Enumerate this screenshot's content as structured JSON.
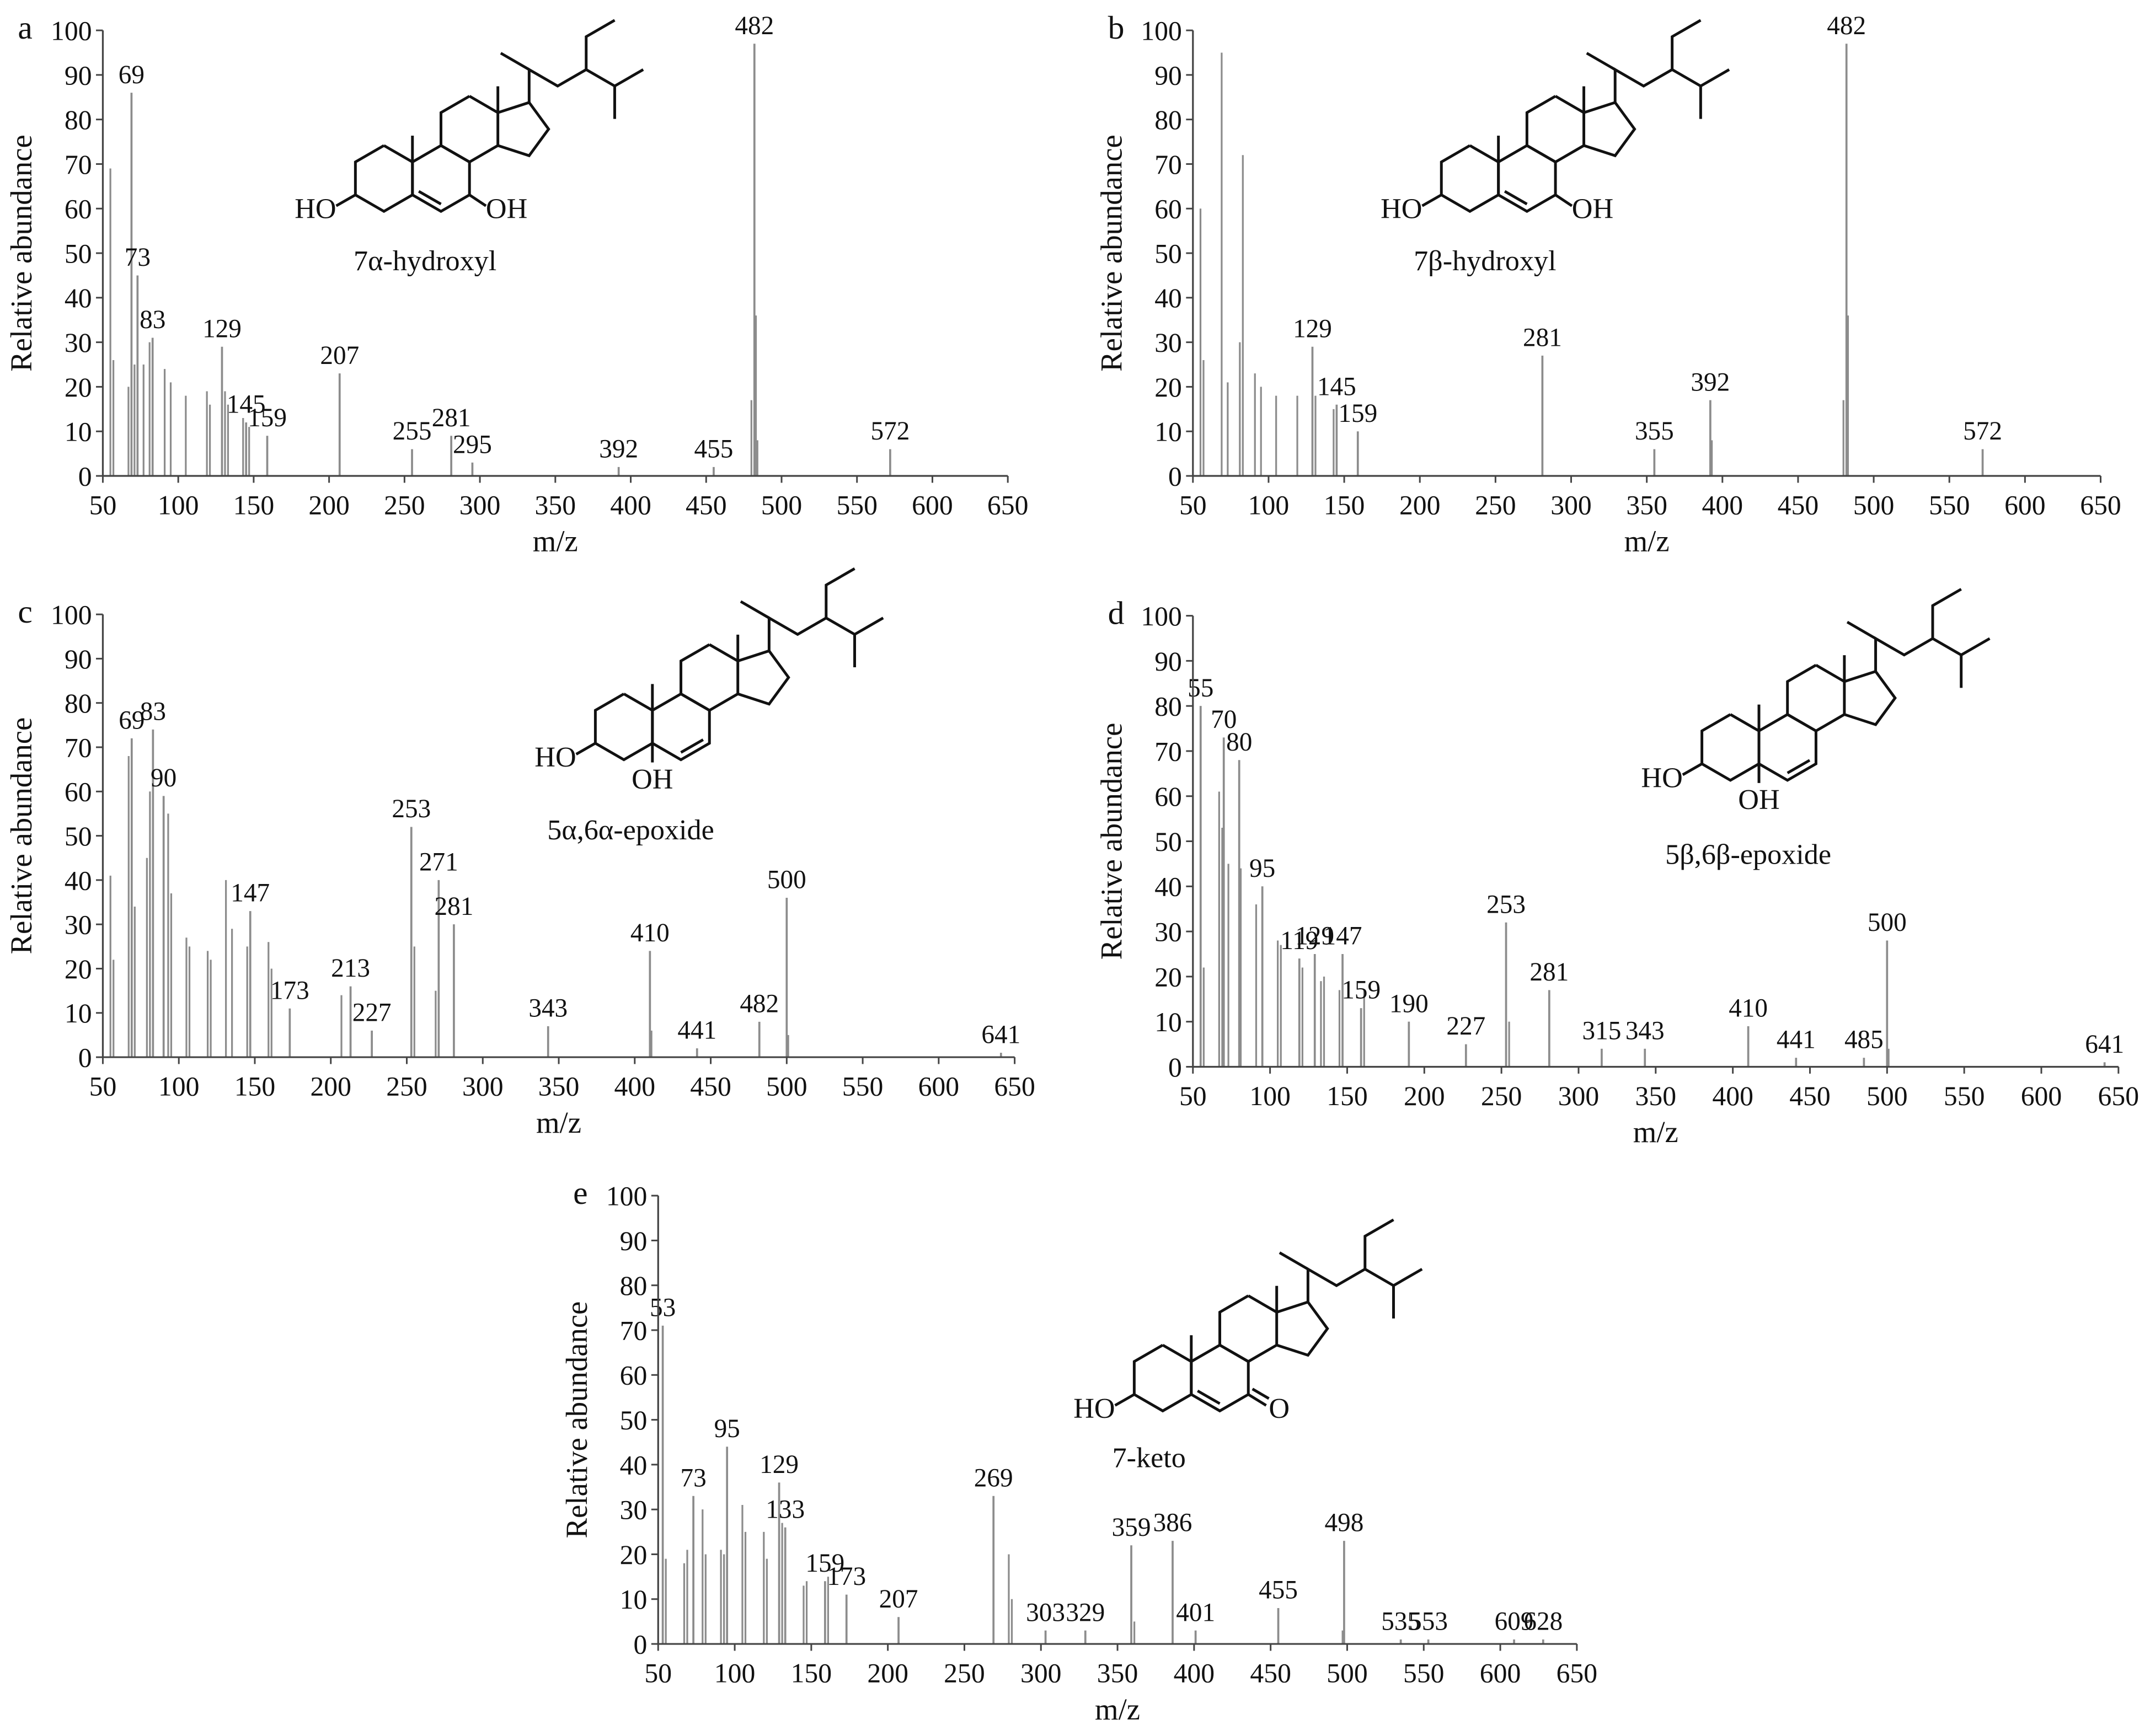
{
  "chart_data": [
    {
      "type": "stem",
      "panel": "a",
      "compound": "7α-hydroxyl",
      "structure_labels": [
        "HO",
        "OH"
      ],
      "xlabel": "m/z",
      "ylabel": "Relative abundance",
      "xlim": [
        50,
        650
      ],
      "xticks": [
        50,
        100,
        150,
        200,
        250,
        300,
        350,
        400,
        450,
        500,
        550,
        600,
        650
      ],
      "ylim": [
        0,
        100
      ],
      "yticks": [
        0,
        10,
        20,
        30,
        40,
        50,
        60,
        70,
        80,
        90,
        100
      ],
      "color": "#8c8c8c",
      "x": [
        69,
        73,
        83,
        129,
        145,
        159,
        207,
        255,
        281,
        295,
        392,
        455,
        482,
        572
      ],
      "values": [
        86,
        45,
        31,
        29,
        12,
        9,
        23,
        6,
        9,
        3,
        2,
        2,
        97,
        6
      ],
      "minor_x": [
        55,
        57,
        67,
        71,
        77,
        81,
        91,
        95,
        105,
        119,
        121,
        131,
        133,
        143,
        147,
        480,
        483,
        484
      ],
      "minor_values": [
        69,
        26,
        20,
        25,
        25,
        30,
        24,
        21,
        18,
        19,
        16,
        19,
        16,
        13,
        11,
        17,
        36,
        8
      ]
    },
    {
      "type": "stem",
      "panel": "b",
      "compound": "7β-hydroxyl",
      "structure_labels": [
        "HO",
        "OH"
      ],
      "xlabel": "m/z",
      "ylabel": "Relative abundance",
      "xlim": [
        50,
        650
      ],
      "xticks": [
        50,
        100,
        150,
        200,
        250,
        300,
        350,
        400,
        450,
        500,
        550,
        600,
        650
      ],
      "ylim": [
        0,
        100
      ],
      "yticks": [
        0,
        10,
        20,
        30,
        40,
        50,
        60,
        70,
        80,
        90,
        100
      ],
      "color": "#8c8c8c",
      "x": [
        129,
        145,
        159,
        281,
        355,
        392,
        482,
        572
      ],
      "values": [
        29,
        16,
        10,
        27,
        6,
        17,
        97,
        6
      ],
      "minor_x": [
        55,
        57,
        69,
        73,
        81,
        83,
        91,
        95,
        105,
        119,
        131,
        143,
        393,
        480,
        483
      ],
      "minor_values": [
        60,
        26,
        95,
        21,
        30,
        72,
        23,
        20,
        18,
        18,
        18,
        15,
        8,
        17,
        36
      ]
    },
    {
      "type": "stem",
      "panel": "c",
      "compound": "5α,6α-epoxide",
      "structure_labels": [
        "HO",
        "OH"
      ],
      "xlabel": "m/z",
      "ylabel": "Relative abundance",
      "xlim": [
        50,
        650
      ],
      "xticks": [
        50,
        100,
        150,
        200,
        250,
        300,
        350,
        400,
        450,
        500,
        550,
        600,
        650
      ],
      "ylim": [
        0,
        100
      ],
      "yticks": [
        0,
        10,
        20,
        30,
        40,
        50,
        60,
        70,
        80,
        90,
        100
      ],
      "color": "#8c8c8c",
      "x": [
        69,
        83,
        90,
        147,
        173,
        213,
        227,
        253,
        271,
        281,
        343,
        410,
        441,
        482,
        500,
        641
      ],
      "values": [
        72,
        74,
        59,
        33,
        11,
        16,
        6,
        52,
        40,
        30,
        7,
        24,
        2,
        8,
        36,
        1
      ],
      "minor_x": [
        55,
        57,
        67,
        71,
        79,
        81,
        93,
        95,
        105,
        107,
        119,
        121,
        131,
        135,
        145,
        159,
        161,
        207,
        255,
        269,
        411,
        501
      ],
      "minor_values": [
        41,
        22,
        68,
        34,
        45,
        60,
        55,
        37,
        27,
        25,
        24,
        22,
        40,
        29,
        25,
        26,
        20,
        14,
        25,
        15,
        6,
        5
      ]
    },
    {
      "type": "stem",
      "panel": "d",
      "compound": "5β,6β-epoxide",
      "structure_labels": [
        "HO",
        "OH"
      ],
      "xlabel": "m/z",
      "ylabel": "Relative abundance",
      "xlim": [
        50,
        650
      ],
      "xticks": [
        50,
        100,
        150,
        200,
        250,
        300,
        350,
        400,
        450,
        500,
        550,
        600,
        650
      ],
      "ylim": [
        0,
        100
      ],
      "yticks": [
        0,
        10,
        20,
        30,
        40,
        50,
        60,
        70,
        80,
        90,
        100
      ],
      "color": "#8c8c8c",
      "x": [
        55,
        70,
        80,
        95,
        119,
        129,
        147,
        159,
        190,
        227,
        253,
        281,
        315,
        343,
        410,
        441,
        485,
        500,
        641
      ],
      "values": [
        80,
        73,
        68,
        40,
        24,
        25,
        25,
        13,
        10,
        5,
        32,
        17,
        4,
        4,
        9,
        2,
        2,
        28,
        1
      ],
      "minor_x": [
        57,
        67,
        69,
        73,
        81,
        91,
        105,
        107,
        121,
        133,
        135,
        145,
        161,
        255,
        501
      ],
      "minor_values": [
        22,
        61,
        53,
        45,
        44,
        36,
        28,
        27,
        22,
        19,
        20,
        17,
        17,
        10,
        4
      ]
    },
    {
      "type": "stem",
      "panel": "e",
      "compound": "7-keto",
      "structure_labels": [
        "HO",
        "O"
      ],
      "xlabel": "m/z",
      "ylabel": "Relative abundance",
      "xlim": [
        50,
        650
      ],
      "xticks": [
        50,
        100,
        150,
        200,
        250,
        300,
        350,
        400,
        450,
        500,
        550,
        600,
        650
      ],
      "ylim": [
        0,
        100
      ],
      "yticks": [
        0,
        10,
        20,
        30,
        40,
        50,
        60,
        70,
        80,
        90,
        100
      ],
      "color": "#8c8c8c",
      "x": [
        53,
        73,
        95,
        129,
        133,
        159,
        173,
        207,
        269,
        303,
        329,
        359,
        386,
        401,
        455,
        498,
        535,
        553,
        609,
        628
      ],
      "values": [
        71,
        33,
        44,
        36,
        26,
        14,
        11,
        6,
        33,
        3,
        3,
        22,
        23,
        3,
        8,
        23,
        1,
        1,
        1,
        1
      ],
      "minor_x": [
        55,
        67,
        69,
        79,
        81,
        91,
        93,
        105,
        107,
        119,
        121,
        131,
        145,
        147,
        161,
        279,
        281,
        361,
        497
      ],
      "minor_values": [
        19,
        18,
        21,
        30,
        20,
        21,
        20,
        31,
        25,
        25,
        19,
        27,
        13,
        14,
        15,
        20,
        10,
        5,
        3
      ]
    }
  ]
}
